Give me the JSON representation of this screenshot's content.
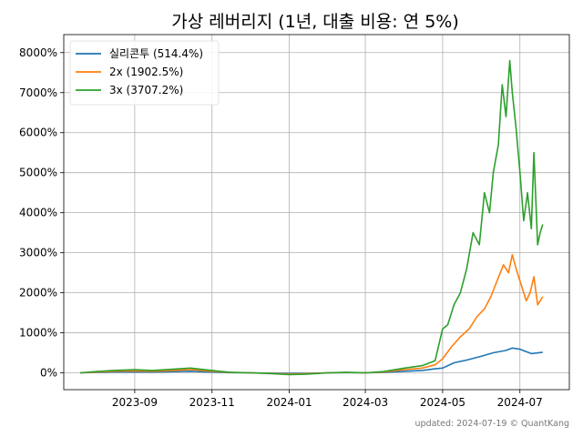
{
  "chart_data": {
    "type": "line",
    "title": "가상 레버리지 (1년, 대출 비용: 연 5%)",
    "xlabel": "",
    "ylabel": "",
    "footer": "updated: 2024-07-19 © QuantKang",
    "x_ticks": [
      "2023-09",
      "2023-11",
      "2024-01",
      "2024-03",
      "2024-05",
      "2024-07"
    ],
    "y_ticks": [
      "0%",
      "1000%",
      "2000%",
      "3000%",
      "4000%",
      "5000%",
      "6000%",
      "7000%",
      "8000%"
    ],
    "ylim": [
      -420,
      8450
    ],
    "xlim": [
      "2023-07-07",
      "2024-08-09"
    ],
    "grid": true,
    "legend_position": "top-left",
    "series": [
      {
        "name": "실리콘투 (514.4%)",
        "color": "#1f77b4",
        "x": [
          "2023-07-20",
          "2023-08-01",
          "2023-08-15",
          "2023-09-01",
          "2023-09-15",
          "2023-10-01",
          "2023-10-15",
          "2023-11-01",
          "2023-11-15",
          "2023-12-01",
          "2023-12-15",
          "2024-01-01",
          "2024-01-15",
          "2024-02-01",
          "2024-02-15",
          "2024-03-01",
          "2024-03-15",
          "2024-04-01",
          "2024-04-15",
          "2024-04-25",
          "2024-05-01",
          "2024-05-10",
          "2024-05-20",
          "2024-06-01",
          "2024-06-10",
          "2024-06-20",
          "2024-06-25",
          "2024-07-01",
          "2024-07-10",
          "2024-07-19"
        ],
        "y": [
          0,
          10,
          20,
          25,
          20,
          30,
          40,
          20,
          5,
          0,
          -5,
          -15,
          -10,
          0,
          5,
          0,
          10,
          40,
          60,
          100,
          120,
          250,
          320,
          420,
          500,
          560,
          620,
          590,
          480,
          514
        ]
      },
      {
        "name": "2x (1902.5%)",
        "color": "#ff7f0e",
        "x": [
          "2023-07-20",
          "2023-08-01",
          "2023-08-15",
          "2023-09-01",
          "2023-09-15",
          "2023-10-01",
          "2023-10-15",
          "2023-11-01",
          "2023-11-15",
          "2023-12-01",
          "2023-12-15",
          "2024-01-01",
          "2024-01-15",
          "2024-02-01",
          "2024-02-15",
          "2024-03-01",
          "2024-03-15",
          "2024-04-01",
          "2024-04-15",
          "2024-04-25",
          "2024-05-01",
          "2024-05-08",
          "2024-05-15",
          "2024-05-22",
          "2024-05-28",
          "2024-06-03",
          "2024-06-08",
          "2024-06-13",
          "2024-06-18",
          "2024-06-22",
          "2024-06-25",
          "2024-06-28",
          "2024-07-02",
          "2024-07-06",
          "2024-07-09",
          "2024-07-12",
          "2024-07-15",
          "2024-07-17",
          "2024-07-19"
        ],
        "y": [
          0,
          20,
          40,
          50,
          40,
          60,
          80,
          40,
          10,
          0,
          -10,
          -30,
          -20,
          0,
          10,
          0,
          20,
          80,
          120,
          200,
          350,
          650,
          900,
          1100,
          1400,
          1600,
          1900,
          2300,
          2700,
          2500,
          2950,
          2600,
          2200,
          1800,
          2000,
          2400,
          1700,
          1800,
          1902
        ]
      },
      {
        "name": "3x (3707.2%)",
        "color": "#2ca02c",
        "x": [
          "2023-07-20",
          "2023-08-01",
          "2023-08-15",
          "2023-09-01",
          "2023-09-15",
          "2023-10-01",
          "2023-10-15",
          "2023-11-01",
          "2023-11-15",
          "2023-12-01",
          "2023-12-15",
          "2024-01-01",
          "2024-01-15",
          "2024-02-01",
          "2024-02-15",
          "2024-03-01",
          "2024-03-15",
          "2024-04-01",
          "2024-04-15",
          "2024-04-25",
          "2024-05-01",
          "2024-05-05",
          "2024-05-10",
          "2024-05-15",
          "2024-05-20",
          "2024-05-25",
          "2024-05-30",
          "2024-06-03",
          "2024-06-07",
          "2024-06-10",
          "2024-06-14",
          "2024-06-17",
          "2024-06-20",
          "2024-06-23",
          "2024-06-25",
          "2024-06-28",
          "2024-07-01",
          "2024-07-04",
          "2024-07-07",
          "2024-07-10",
          "2024-07-12",
          "2024-07-15",
          "2024-07-17",
          "2024-07-19"
        ],
        "y": [
          0,
          30,
          60,
          80,
          60,
          90,
          120,
          60,
          15,
          0,
          -15,
          -45,
          -30,
          0,
          15,
          0,
          30,
          120,
          180,
          300,
          1100,
          1200,
          1700,
          2000,
          2600,
          3500,
          3200,
          4500,
          4000,
          5000,
          5700,
          7200,
          6400,
          7800,
          7000,
          6100,
          5000,
          3800,
          4500,
          3600,
          5500,
          3200,
          3500,
          3707
        ]
      }
    ]
  }
}
